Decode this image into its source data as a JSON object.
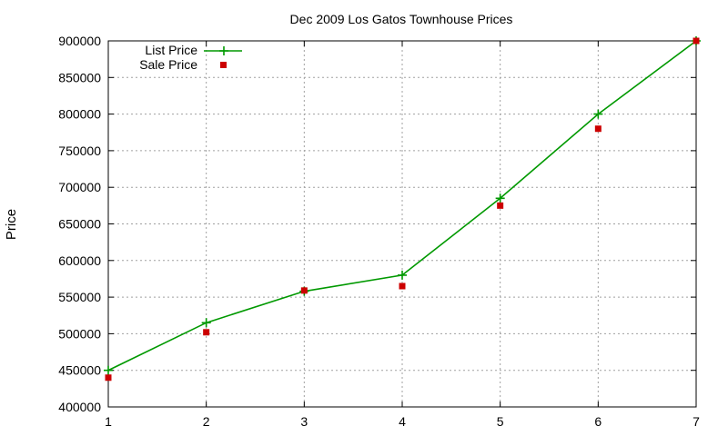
{
  "chart_data": {
    "type": "line",
    "title": "Dec 2009 Los Gatos Townhouse Prices",
    "xlabel": "",
    "ylabel": "Price",
    "xlim": [
      1,
      7
    ],
    "ylim": [
      400000,
      900000
    ],
    "x_ticks": [
      "1",
      "2",
      "3",
      "4",
      "5",
      "6",
      "7"
    ],
    "y_ticks": [
      "400000",
      "450000",
      "500000",
      "550000",
      "600000",
      "650000",
      "700000",
      "750000",
      "800000",
      "850000",
      "900000"
    ],
    "grid": true,
    "legend_position": "top-left",
    "x": [
      1,
      2,
      3,
      4,
      5,
      6,
      7
    ],
    "series": [
      {
        "name": "List Price",
        "style": "line-with-plus-markers",
        "color": "#009900",
        "values": [
          450000,
          515000,
          558000,
          580000,
          685000,
          800000,
          900000
        ]
      },
      {
        "name": "Sale Price",
        "style": "square-points",
        "color": "#cc0000",
        "values": [
          440000,
          502000,
          559000,
          565000,
          675000,
          780000,
          900000
        ]
      }
    ]
  }
}
